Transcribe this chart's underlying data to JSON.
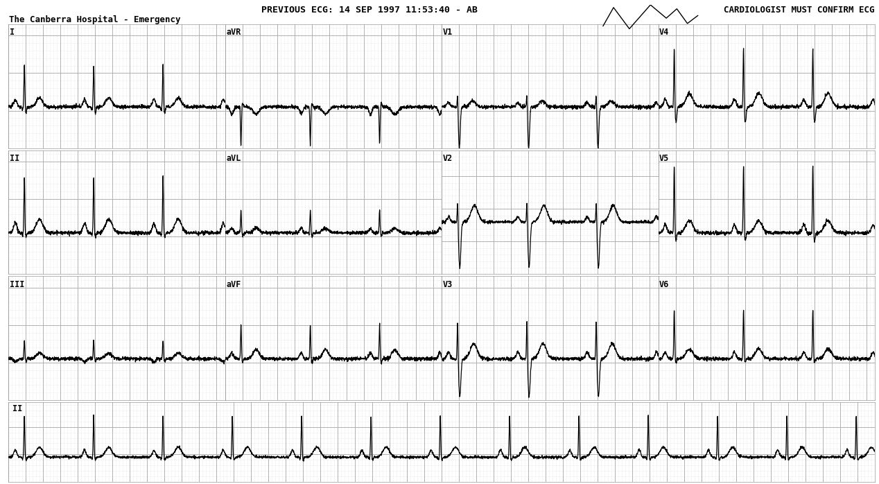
{
  "title_line1": "PREVIOUS ECG: 14 SEP 1997 11:53:40 - AB",
  "title_line2": "The Canberra Hospital - Emergency",
  "top_right_text": "CARDIOLOGIST MUST CONFIRM ECG",
  "background_color": "#ffffff",
  "grid_major_color": "#aaaaaa",
  "grid_minor_color": "#cccccc",
  "ecg_color": "#000000",
  "lead_labels": [
    "I",
    "aVR",
    "V1",
    "V4",
    "II",
    "aVL",
    "V2",
    "V5",
    "III",
    "aVF",
    "V3",
    "V6",
    "II"
  ],
  "fig_width": 12.68,
  "fig_height": 6.98,
  "dpi": 100
}
